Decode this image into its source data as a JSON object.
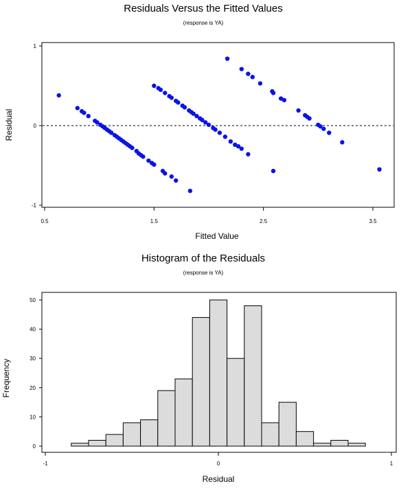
{
  "chart_data": [
    {
      "type": "scatter",
      "title": "Residuals Versus the Fitted Values",
      "subtitle": "(response is YA)",
      "xlabel": "Fitted Value",
      "ylabel": "Residual",
      "xlim": [
        0.5,
        3.6
      ],
      "ylim": [
        -1.0,
        1.0
      ],
      "xticks": [
        "0.5",
        "1.5",
        "2.5",
        "3.5"
      ],
      "yticks": [
        "1",
        "0",
        "-1"
      ],
      "xtick_values": [
        0.5,
        1.5,
        2.5,
        3.5
      ],
      "ytick_values": [
        1,
        0,
        -1
      ],
      "reference_line": 0,
      "marker_color": "#0a14e6",
      "points": [
        [
          0.63,
          0.38
        ],
        [
          0.8,
          0.22
        ],
        [
          0.84,
          0.18
        ],
        [
          0.86,
          0.16
        ],
        [
          0.9,
          0.12
        ],
        [
          0.96,
          0.06
        ],
        [
          0.98,
          0.04
        ],
        [
          1.01,
          0.01
        ],
        [
          1.03,
          -0.01
        ],
        [
          1.05,
          -0.03
        ],
        [
          1.07,
          -0.05
        ],
        [
          1.09,
          -0.07
        ],
        [
          1.11,
          -0.09
        ],
        [
          1.14,
          -0.12
        ],
        [
          1.16,
          -0.14
        ],
        [
          1.18,
          -0.16
        ],
        [
          1.2,
          -0.18
        ],
        [
          1.22,
          -0.2
        ],
        [
          1.24,
          -0.22
        ],
        [
          1.26,
          -0.24
        ],
        [
          1.28,
          -0.26
        ],
        [
          1.3,
          -0.28
        ],
        [
          1.34,
          -0.32
        ],
        [
          1.36,
          -0.35
        ],
        [
          1.38,
          -0.37
        ],
        [
          1.4,
          -0.39
        ],
        [
          1.45,
          -0.44
        ],
        [
          1.48,
          -0.47
        ],
        [
          1.5,
          -0.49
        ],
        [
          1.58,
          -0.57
        ],
        [
          1.6,
          -0.6
        ],
        [
          1.66,
          -0.64
        ],
        [
          1.7,
          -0.69
        ],
        [
          1.83,
          -0.82
        ],
        [
          1.5,
          0.5
        ],
        [
          1.54,
          0.47
        ],
        [
          1.56,
          0.45
        ],
        [
          1.6,
          0.41
        ],
        [
          1.64,
          0.37
        ],
        [
          1.66,
          0.35
        ],
        [
          1.7,
          0.31
        ],
        [
          1.72,
          0.29
        ],
        [
          1.76,
          0.25
        ],
        [
          1.78,
          0.23
        ],
        [
          1.82,
          0.19
        ],
        [
          1.84,
          0.17
        ],
        [
          1.86,
          0.15
        ],
        [
          1.89,
          0.12
        ],
        [
          1.92,
          0.09
        ],
        [
          1.94,
          0.07
        ],
        [
          1.97,
          0.04
        ],
        [
          2.0,
          0.01
        ],
        [
          2.04,
          -0.03
        ],
        [
          2.06,
          -0.05
        ],
        [
          2.1,
          -0.09
        ],
        [
          2.15,
          -0.14
        ],
        [
          2.2,
          -0.2
        ],
        [
          2.24,
          -0.24
        ],
        [
          2.27,
          -0.26
        ],
        [
          2.3,
          -0.29
        ],
        [
          2.36,
          -0.36
        ],
        [
          2.59,
          -0.57
        ],
        [
          2.17,
          0.84
        ],
        [
          2.3,
          0.71
        ],
        [
          2.36,
          0.65
        ],
        [
          2.4,
          0.61
        ],
        [
          2.47,
          0.53
        ],
        [
          2.58,
          0.43
        ],
        [
          2.59,
          0.41
        ],
        [
          2.66,
          0.34
        ],
        [
          2.69,
          0.32
        ],
        [
          2.82,
          0.19
        ],
        [
          2.88,
          0.13
        ],
        [
          2.9,
          0.11
        ],
        [
          2.92,
          0.09
        ],
        [
          3.0,
          0.01
        ],
        [
          3.02,
          -0.01
        ],
        [
          3.05,
          -0.04
        ],
        [
          3.1,
          -0.09
        ],
        [
          3.22,
          -0.21
        ],
        [
          3.56,
          -0.55
        ]
      ]
    },
    {
      "type": "bar",
      "title": "Histogram of the Residuals",
      "subtitle": "(response is YA)",
      "xlabel": "Residual",
      "ylabel": "Frequency",
      "xlim": [
        -1.0,
        1.0
      ],
      "ylim": [
        0,
        52
      ],
      "xticks": [
        "-1",
        "0",
        "1"
      ],
      "yticks": [
        "0",
        "10",
        "20",
        "30",
        "40",
        "50"
      ],
      "xtick_values": [
        -1,
        0,
        1
      ],
      "ytick_values": [
        0,
        10,
        20,
        30,
        40,
        50
      ],
      "bin_width": 0.1,
      "bin_centers": [
        -0.8,
        -0.7,
        -0.6,
        -0.5,
        -0.4,
        -0.3,
        -0.2,
        -0.1,
        0.0,
        0.1,
        0.2,
        0.3,
        0.4,
        0.5,
        0.6,
        0.7,
        0.8
      ],
      "values": [
        1,
        2,
        4,
        8,
        9,
        19,
        23,
        44,
        50,
        30,
        48,
        8,
        15,
        5,
        1,
        2,
        1
      ],
      "bar_color": "#dcdcdc"
    }
  ]
}
